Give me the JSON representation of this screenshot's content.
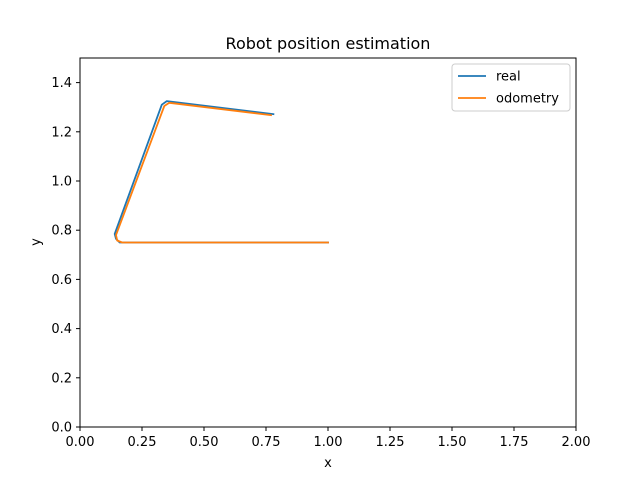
{
  "chart_data": {
    "type": "line",
    "title": "Robot position estimation",
    "xlabel": "x",
    "ylabel": "y",
    "xlim": [
      0.0,
      2.0
    ],
    "ylim": [
      0.0,
      1.5
    ],
    "xticks": [
      "0.00",
      "0.25",
      "0.50",
      "0.75",
      "1.00",
      "1.25",
      "1.50",
      "1.75",
      "2.00"
    ],
    "yticks": [
      "0.0",
      "0.2",
      "0.4",
      "0.6",
      "0.8",
      "1.0",
      "1.2",
      "1.4"
    ],
    "grid": false,
    "legend_position": "top-right",
    "series": [
      {
        "name": "real",
        "color": "#1f77b4",
        "points": [
          [
            1.0,
            0.75
          ],
          [
            0.16,
            0.75
          ],
          [
            0.145,
            0.765
          ],
          [
            0.14,
            0.785
          ],
          [
            0.33,
            1.31
          ],
          [
            0.35,
            1.325
          ],
          [
            0.78,
            1.272
          ]
        ]
      },
      {
        "name": "odometry",
        "color": "#ff7f0e",
        "points": [
          [
            1.0,
            0.75
          ],
          [
            0.17,
            0.75
          ],
          [
            0.15,
            0.758
          ],
          [
            0.145,
            0.78
          ],
          [
            0.34,
            1.305
          ],
          [
            0.36,
            1.318
          ],
          [
            0.77,
            1.268
          ]
        ]
      }
    ]
  }
}
